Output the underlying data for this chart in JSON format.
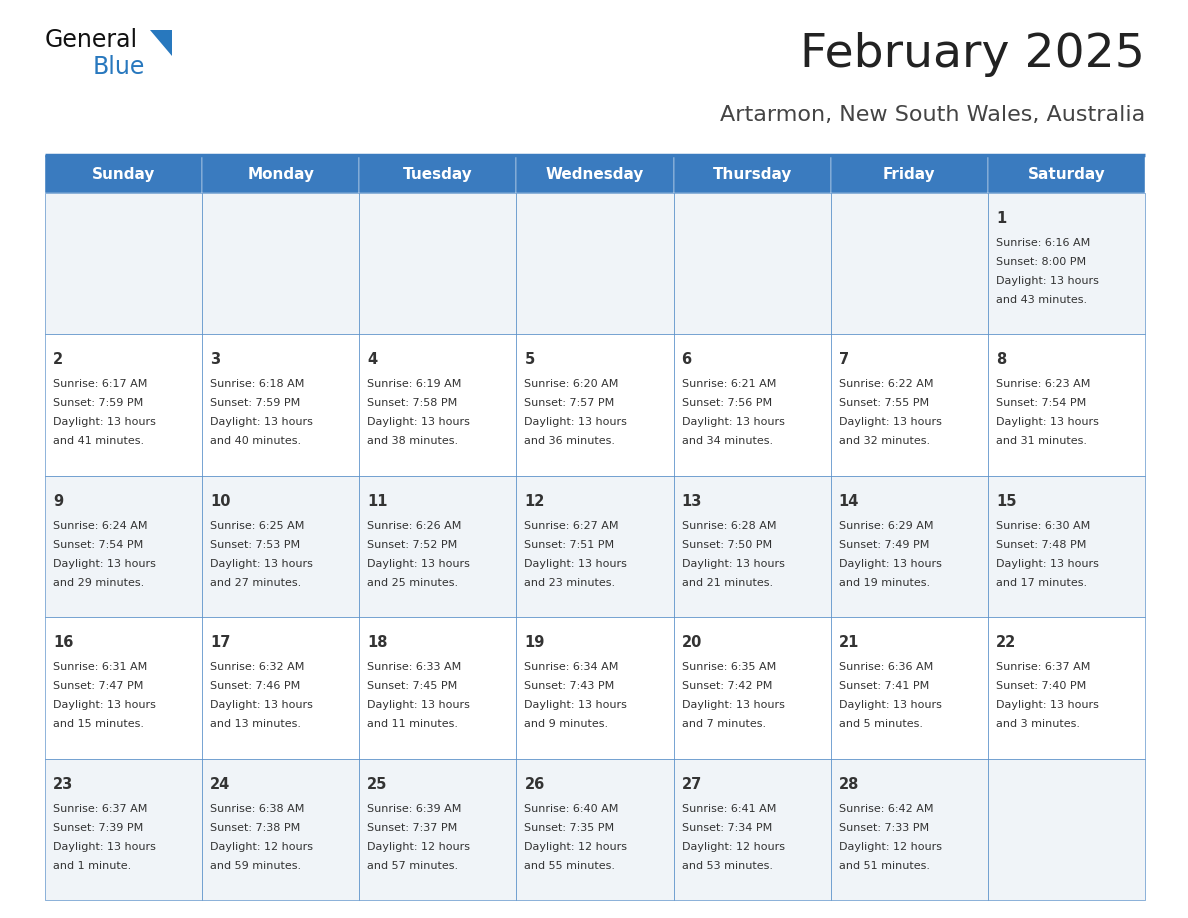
{
  "title": "February 2025",
  "subtitle": "Artarmon, New South Wales, Australia",
  "days_of_week": [
    "Sunday",
    "Monday",
    "Tuesday",
    "Wednesday",
    "Thursday",
    "Friday",
    "Saturday"
  ],
  "header_bg": "#3a7bbf",
  "header_text": "#ffffff",
  "cell_bg_even": "#f0f4f8",
  "cell_bg_odd": "#ffffff",
  "cell_text": "#333333",
  "border_color": "#3a7bbf",
  "title_color": "#222222",
  "subtitle_color": "#444444",
  "logo_general_color": "#111111",
  "logo_blue_color": "#2878be",
  "calendar_data": [
    [
      null,
      null,
      null,
      null,
      null,
      null,
      {
        "day": 1,
        "sunrise": "6:16 AM",
        "sunset": "8:00 PM",
        "daylight_line1": "Daylight: 13 hours",
        "daylight_line2": "and 43 minutes."
      }
    ],
    [
      {
        "day": 2,
        "sunrise": "6:17 AM",
        "sunset": "7:59 PM",
        "daylight_line1": "Daylight: 13 hours",
        "daylight_line2": "and 41 minutes."
      },
      {
        "day": 3,
        "sunrise": "6:18 AM",
        "sunset": "7:59 PM",
        "daylight_line1": "Daylight: 13 hours",
        "daylight_line2": "and 40 minutes."
      },
      {
        "day": 4,
        "sunrise": "6:19 AM",
        "sunset": "7:58 PM",
        "daylight_line1": "Daylight: 13 hours",
        "daylight_line2": "and 38 minutes."
      },
      {
        "day": 5,
        "sunrise": "6:20 AM",
        "sunset": "7:57 PM",
        "daylight_line1": "Daylight: 13 hours",
        "daylight_line2": "and 36 minutes."
      },
      {
        "day": 6,
        "sunrise": "6:21 AM",
        "sunset": "7:56 PM",
        "daylight_line1": "Daylight: 13 hours",
        "daylight_line2": "and 34 minutes."
      },
      {
        "day": 7,
        "sunrise": "6:22 AM",
        "sunset": "7:55 PM",
        "daylight_line1": "Daylight: 13 hours",
        "daylight_line2": "and 32 minutes."
      },
      {
        "day": 8,
        "sunrise": "6:23 AM",
        "sunset": "7:54 PM",
        "daylight_line1": "Daylight: 13 hours",
        "daylight_line2": "and 31 minutes."
      }
    ],
    [
      {
        "day": 9,
        "sunrise": "6:24 AM",
        "sunset": "7:54 PM",
        "daylight_line1": "Daylight: 13 hours",
        "daylight_line2": "and 29 minutes."
      },
      {
        "day": 10,
        "sunrise": "6:25 AM",
        "sunset": "7:53 PM",
        "daylight_line1": "Daylight: 13 hours",
        "daylight_line2": "and 27 minutes."
      },
      {
        "day": 11,
        "sunrise": "6:26 AM",
        "sunset": "7:52 PM",
        "daylight_line1": "Daylight: 13 hours",
        "daylight_line2": "and 25 minutes."
      },
      {
        "day": 12,
        "sunrise": "6:27 AM",
        "sunset": "7:51 PM",
        "daylight_line1": "Daylight: 13 hours",
        "daylight_line2": "and 23 minutes."
      },
      {
        "day": 13,
        "sunrise": "6:28 AM",
        "sunset": "7:50 PM",
        "daylight_line1": "Daylight: 13 hours",
        "daylight_line2": "and 21 minutes."
      },
      {
        "day": 14,
        "sunrise": "6:29 AM",
        "sunset": "7:49 PM",
        "daylight_line1": "Daylight: 13 hours",
        "daylight_line2": "and 19 minutes."
      },
      {
        "day": 15,
        "sunrise": "6:30 AM",
        "sunset": "7:48 PM",
        "daylight_line1": "Daylight: 13 hours",
        "daylight_line2": "and 17 minutes."
      }
    ],
    [
      {
        "day": 16,
        "sunrise": "6:31 AM",
        "sunset": "7:47 PM",
        "daylight_line1": "Daylight: 13 hours",
        "daylight_line2": "and 15 minutes."
      },
      {
        "day": 17,
        "sunrise": "6:32 AM",
        "sunset": "7:46 PM",
        "daylight_line1": "Daylight: 13 hours",
        "daylight_line2": "and 13 minutes."
      },
      {
        "day": 18,
        "sunrise": "6:33 AM",
        "sunset": "7:45 PM",
        "daylight_line1": "Daylight: 13 hours",
        "daylight_line2": "and 11 minutes."
      },
      {
        "day": 19,
        "sunrise": "6:34 AM",
        "sunset": "7:43 PM",
        "daylight_line1": "Daylight: 13 hours",
        "daylight_line2": "and 9 minutes."
      },
      {
        "day": 20,
        "sunrise": "6:35 AM",
        "sunset": "7:42 PM",
        "daylight_line1": "Daylight: 13 hours",
        "daylight_line2": "and 7 minutes."
      },
      {
        "day": 21,
        "sunrise": "6:36 AM",
        "sunset": "7:41 PM",
        "daylight_line1": "Daylight: 13 hours",
        "daylight_line2": "and 5 minutes."
      },
      {
        "day": 22,
        "sunrise": "6:37 AM",
        "sunset": "7:40 PM",
        "daylight_line1": "Daylight: 13 hours",
        "daylight_line2": "and 3 minutes."
      }
    ],
    [
      {
        "day": 23,
        "sunrise": "6:37 AM",
        "sunset": "7:39 PM",
        "daylight_line1": "Daylight: 13 hours",
        "daylight_line2": "and 1 minute."
      },
      {
        "day": 24,
        "sunrise": "6:38 AM",
        "sunset": "7:38 PM",
        "daylight_line1": "Daylight: 12 hours",
        "daylight_line2": "and 59 minutes."
      },
      {
        "day": 25,
        "sunrise": "6:39 AM",
        "sunset": "7:37 PM",
        "daylight_line1": "Daylight: 12 hours",
        "daylight_line2": "and 57 minutes."
      },
      {
        "day": 26,
        "sunrise": "6:40 AM",
        "sunset": "7:35 PM",
        "daylight_line1": "Daylight: 12 hours",
        "daylight_line2": "and 55 minutes."
      },
      {
        "day": 27,
        "sunrise": "6:41 AM",
        "sunset": "7:34 PM",
        "daylight_line1": "Daylight: 12 hours",
        "daylight_line2": "and 53 minutes."
      },
      {
        "day": 28,
        "sunrise": "6:42 AM",
        "sunset": "7:33 PM",
        "daylight_line1": "Daylight: 12 hours",
        "daylight_line2": "and 51 minutes."
      },
      null
    ]
  ]
}
